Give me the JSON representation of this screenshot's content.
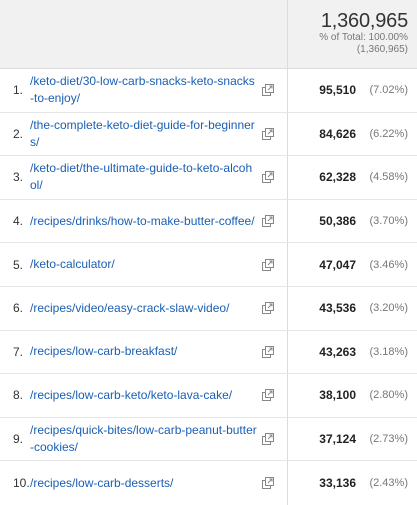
{
  "summary": {
    "total": "1,360,965",
    "percent_label": "% of Total: 100.00%",
    "total_parenthetical": "(1,360,965)"
  },
  "rows": [
    {
      "rank": "1.",
      "page": "/keto-diet/30-low-carb-snacks-keto-snacks-to-enjoy/",
      "value": "95,510",
      "pct": "(7.02%)"
    },
    {
      "rank": "2.",
      "page": "/the-complete-keto-diet-guide-for-beginners/",
      "value": "84,626",
      "pct": "(6.22%)"
    },
    {
      "rank": "3.",
      "page": "/keto-diet/the-ultimate-guide-to-keto-alcohol/",
      "value": "62,328",
      "pct": "(4.58%)"
    },
    {
      "rank": "4.",
      "page": "/recipes/drinks/how-to-make-butter-coffee/",
      "value": "50,386",
      "pct": "(3.70%)"
    },
    {
      "rank": "5.",
      "page": "/keto-calculator/",
      "value": "47,047",
      "pct": "(3.46%)"
    },
    {
      "rank": "6.",
      "page": "/recipes/video/easy-crack-slaw-video/",
      "value": "43,536",
      "pct": "(3.20%)"
    },
    {
      "rank": "7.",
      "page": "/recipes/low-carb-breakfast/",
      "value": "43,263",
      "pct": "(3.18%)"
    },
    {
      "rank": "8.",
      "page": "/recipes/low-carb-keto/keto-lava-cake/",
      "value": "38,100",
      "pct": "(2.80%)"
    },
    {
      "rank": "9.",
      "page": "/recipes/quick-bites/low-carb-peanut-butter-cookies/",
      "value": "37,124",
      "pct": "(2.73%)"
    },
    {
      "rank": "10.",
      "page": "/recipes/low-carb-desserts/",
      "value": "33,136",
      "pct": "(2.43%)"
    }
  ],
  "icons": {
    "external_link": "external-link-icon"
  },
  "colors": {
    "link": "#1a5fb4",
    "header_bg": "#f1f1f1",
    "border": "#dcdcdc"
  }
}
